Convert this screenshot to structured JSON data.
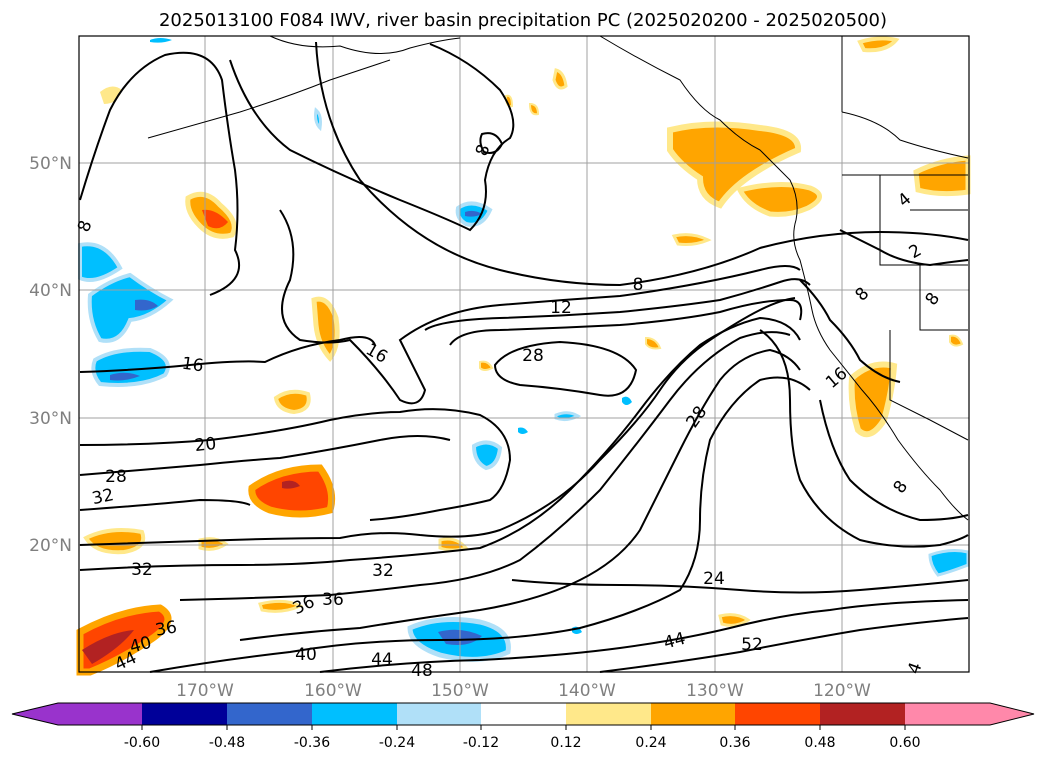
{
  "title": "2025013100 F084 IWV, river basin precipitation PC (2025020200 - 2025020500)",
  "lat_labels": [
    "50°N",
    "40°N",
    "30°N",
    "20°N"
  ],
  "lon_labels": [
    "170°W",
    "160°W",
    "150°W",
    "140°W",
    "130°W",
    "120°W"
  ],
  "contour_labels": [
    "8",
    "8",
    "12",
    "16",
    "16",
    "20",
    "28",
    "32",
    "28",
    "28",
    "32",
    "32",
    "36",
    "36",
    "36",
    "40",
    "40",
    "44",
    "44",
    "44",
    "48",
    "24",
    "52",
    "8",
    "16",
    "8",
    "8",
    "8",
    "4",
    "4",
    "2"
  ],
  "colorbar": {
    "ticks": [
      "-0.60",
      "-0.48",
      "-0.36",
      "-0.24",
      "-0.12",
      "0.12",
      "0.24",
      "0.36",
      "0.48",
      "0.60"
    ],
    "colors": [
      "#9933cc",
      "#000099",
      "#3366cc",
      "#00bfff",
      "#b0e0f8",
      "#ffffff",
      "#ffe88a",
      "#ffa500",
      "#ff4500",
      "#b22222",
      "#ff88aa"
    ]
  },
  "shading_colors": {
    "light_yellow": "#ffe88a",
    "orange": "#ffa500",
    "red_orange": "#ff4500",
    "dark_red": "#b22222",
    "light_blue": "#b0e0f8",
    "deep_sky_blue": "#00bfff",
    "royal_blue": "#3366cc"
  }
}
